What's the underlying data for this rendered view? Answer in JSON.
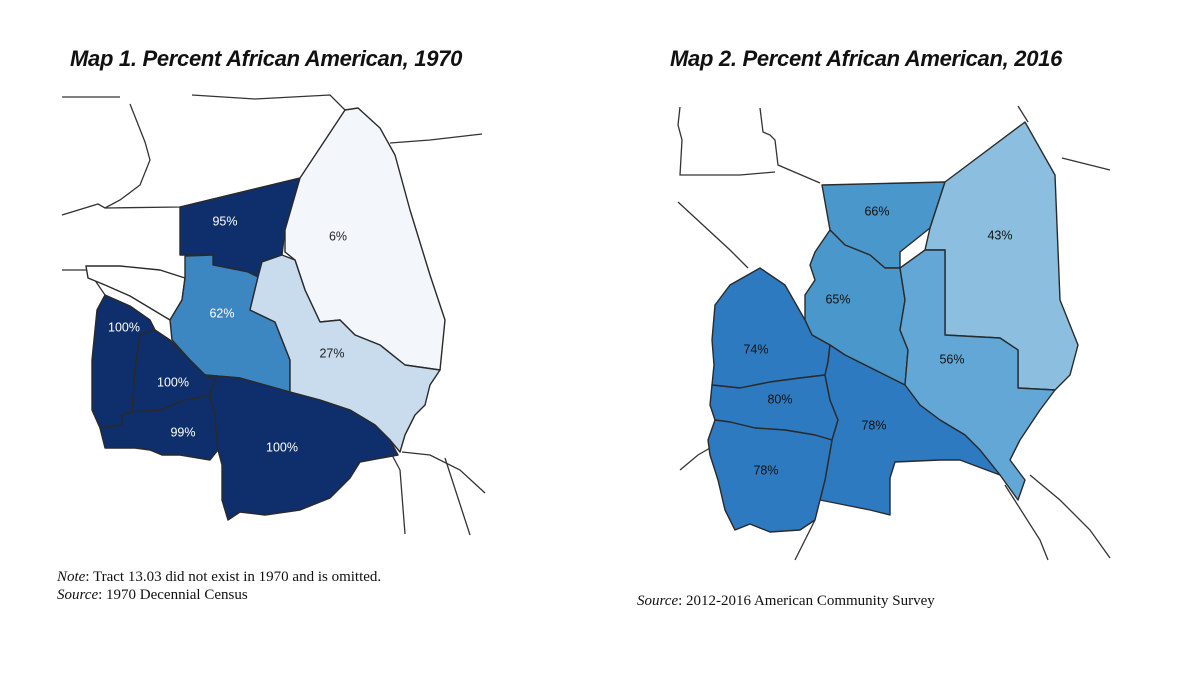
{
  "maps": [
    {
      "title": "Map 1. Percent African American, 1970",
      "tracts": [
        {
          "label": "95%",
          "value": 95,
          "color": "#0e2f6b",
          "text_color": "#ffffff"
        },
        {
          "label": "6%",
          "value": 6,
          "color": "#f3f6fb",
          "text_color": "#222222"
        },
        {
          "label": "62%",
          "value": 62,
          "color": "#3c86c2",
          "text_color": "#ffffff"
        },
        {
          "label": "27%",
          "value": 27,
          "color": "#c8dcee",
          "text_color": "#222222"
        },
        {
          "label": "100%",
          "value": 100,
          "color": "#0e2f6b",
          "text_color": "#ffffff"
        },
        {
          "label": "100%",
          "value": 100,
          "color": "#0e2f6b",
          "text_color": "#ffffff"
        },
        {
          "label": "99%",
          "value": 99,
          "color": "#0e2f6b",
          "text_color": "#ffffff"
        },
        {
          "label": "100%",
          "value": 100,
          "color": "#0e2f6b",
          "text_color": "#ffffff"
        }
      ],
      "note_label": "Note",
      "note_text": ": Tract 13.03 did not exist in 1970 and is omitted.",
      "source_label": "Source",
      "source_text": ": 1970 Decennial Census"
    },
    {
      "title": "Map 2. Percent African American, 2016",
      "tracts": [
        {
          "label": "66%",
          "value": 66,
          "color": "#4a97cb",
          "text_color": "#111111"
        },
        {
          "label": "43%",
          "value": 43,
          "color": "#8cbfdf",
          "text_color": "#111111"
        },
        {
          "label": "65%",
          "value": 65,
          "color": "#4a97cb",
          "text_color": "#111111"
        },
        {
          "label": "56%",
          "value": 56,
          "color": "#62a7d6",
          "text_color": "#111111"
        },
        {
          "label": "74%",
          "value": 74,
          "color": "#2d7ac0",
          "text_color": "#111111"
        },
        {
          "label": "80%",
          "value": 80,
          "color": "#2d7ac0",
          "text_color": "#111111"
        },
        {
          "label": "78%",
          "value": 78,
          "color": "#2d7ac0",
          "text_color": "#111111"
        },
        {
          "label": "78%",
          "value": 78,
          "color": "#2d7ac0",
          "text_color": "#111111"
        }
      ],
      "source_label": "Source",
      "source_text": ": 2012-2016 American Community Survey"
    }
  ]
}
